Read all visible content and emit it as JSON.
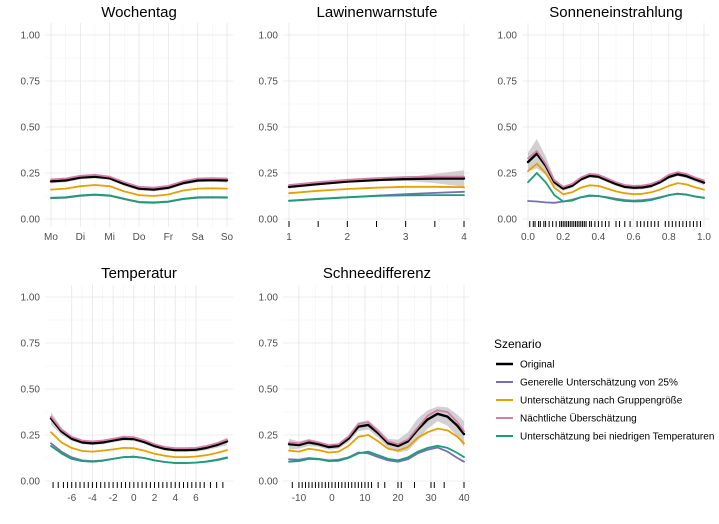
{
  "legend": {
    "title": "Szenario",
    "position": "right",
    "items": [
      {
        "key": "original",
        "label": "Original",
        "color": "#000000"
      },
      {
        "key": "generell",
        "label": "Generelle Unterschätzung von 25%",
        "color": "#7570b3"
      },
      {
        "key": "gruppe",
        "label": "Unterschätzung nach Gruppengröße",
        "color": "#e6a100"
      },
      {
        "key": "nacht",
        "label": "Nächtliche Überschätzung",
        "color": "#d67eaa"
      },
      {
        "key": "temp",
        "label": "Unterschätzung bei niedrigen Temperaturen",
        "color": "#1b9e77"
      }
    ]
  },
  "chart_data": [
    {
      "type": "line",
      "title": "Wochentag",
      "xlim": [
        1,
        7
      ],
      "ylim": [
        0,
        1
      ],
      "xticks": [
        {
          "v": 1,
          "label": "Mo"
        },
        {
          "v": 2,
          "label": "Di"
        },
        {
          "v": 3,
          "label": "Mi"
        },
        {
          "v": 4,
          "label": "Do"
        },
        {
          "v": 5,
          "label": "Fr"
        },
        {
          "v": 6,
          "label": "Sa"
        },
        {
          "v": 7,
          "label": "So"
        }
      ],
      "yticks": [
        {
          "v": 0,
          "label": "0.00"
        },
        {
          "v": 0.25,
          "label": "0.25"
        },
        {
          "v": 0.5,
          "label": "0.50"
        },
        {
          "v": 0.75,
          "label": "0.75"
        },
        {
          "v": 1,
          "label": "1.00"
        }
      ],
      "x": [
        1,
        1.5,
        2,
        2.5,
        3,
        3.5,
        4,
        4.5,
        5,
        5.5,
        6,
        6.5,
        7
      ],
      "series": [
        {
          "key": "nacht",
          "values": [
            0.215,
            0.22,
            0.235,
            0.24,
            0.23,
            0.2,
            0.175,
            0.17,
            0.18,
            0.205,
            0.22,
            0.222,
            0.22
          ]
        },
        {
          "key": "original",
          "values": [
            0.205,
            0.21,
            0.225,
            0.23,
            0.222,
            0.19,
            0.165,
            0.16,
            0.17,
            0.195,
            0.21,
            0.212,
            0.21
          ],
          "band": [
            0.012,
            0.01,
            0.01,
            0.01,
            0.01,
            0.01,
            0.01,
            0.01,
            0.01,
            0.01,
            0.01,
            0.01,
            0.012
          ]
        },
        {
          "key": "gruppe",
          "values": [
            0.16,
            0.165,
            0.178,
            0.185,
            0.178,
            0.15,
            0.13,
            0.125,
            0.133,
            0.155,
            0.165,
            0.167,
            0.165
          ]
        },
        {
          "key": "temp",
          "values": [
            0.115,
            0.118,
            0.128,
            0.133,
            0.128,
            0.11,
            0.093,
            0.09,
            0.095,
            0.11,
            0.118,
            0.119,
            0.118
          ]
        },
        {
          "key": "generell",
          "values": [
            0.113,
            0.116,
            0.126,
            0.131,
            0.126,
            0.108,
            0.091,
            0.088,
            0.093,
            0.108,
            0.116,
            0.117,
            0.116
          ]
        }
      ]
    },
    {
      "type": "line",
      "title": "Lawinenwarnstufe",
      "xlim": [
        1,
        4
      ],
      "ylim": [
        0,
        1
      ],
      "xticks": [
        {
          "v": 1,
          "label": "1"
        },
        {
          "v": 2,
          "label": "2"
        },
        {
          "v": 3,
          "label": "3"
        },
        {
          "v": 4,
          "label": "4"
        }
      ],
      "yticks": [
        {
          "v": 0,
          "label": "0.00"
        },
        {
          "v": 0.25,
          "label": "0.25"
        },
        {
          "v": 0.5,
          "label": "0.50"
        },
        {
          "v": 0.75,
          "label": "0.75"
        },
        {
          "v": 1,
          "label": "1.00"
        }
      ],
      "rug": [
        1,
        1.5,
        2,
        2.5,
        3,
        3.5,
        4
      ],
      "x": [
        1,
        1.5,
        2,
        2.5,
        3,
        3.5,
        4
      ],
      "series": [
        {
          "key": "nacht",
          "values": [
            0.185,
            0.2,
            0.213,
            0.222,
            0.228,
            0.23,
            0.23
          ]
        },
        {
          "key": "original",
          "values": [
            0.175,
            0.19,
            0.203,
            0.212,
            0.217,
            0.22,
            0.22
          ],
          "band": [
            0.01,
            0.007,
            0.006,
            0.006,
            0.01,
            0.025,
            0.045
          ]
        },
        {
          "key": "gruppe",
          "values": [
            0.14,
            0.153,
            0.163,
            0.17,
            0.175,
            0.175,
            0.173
          ]
        },
        {
          "key": "temp",
          "values": [
            0.1,
            0.11,
            0.118,
            0.125,
            0.128,
            0.13,
            0.13
          ]
        },
        {
          "key": "generell",
          "values": [
            0.098,
            0.108,
            0.118,
            0.127,
            0.135,
            0.142,
            0.148
          ]
        }
      ]
    },
    {
      "type": "line",
      "title": "Sonneneinstrahlung",
      "xlim": [
        0,
        1
      ],
      "ylim": [
        0,
        1
      ],
      "xticks": [
        {
          "v": 0,
          "label": "0.0"
        },
        {
          "v": 0.2,
          "label": "0.2"
        },
        {
          "v": 0.4,
          "label": "0.4"
        },
        {
          "v": 0.6,
          "label": "0.6"
        },
        {
          "v": 0.8,
          "label": "0.8"
        },
        {
          "v": 1,
          "label": "1.0"
        }
      ],
      "yticks": [
        {
          "v": 0,
          "label": "0.00"
        },
        {
          "v": 0.25,
          "label": "0.25"
        },
        {
          "v": 0.5,
          "label": "0.50"
        },
        {
          "v": 0.75,
          "label": "0.75"
        },
        {
          "v": 1,
          "label": "1.00"
        }
      ],
      "rug": [
        0.01,
        0.03,
        0.04,
        0.06,
        0.07,
        0.09,
        0.1,
        0.12,
        0.14,
        0.16,
        0.18,
        0.19,
        0.2,
        0.21,
        0.22,
        0.23,
        0.24,
        0.25,
        0.26,
        0.27,
        0.28,
        0.29,
        0.3,
        0.31,
        0.32,
        0.33,
        0.35,
        0.36,
        0.38,
        0.4,
        0.42,
        0.44,
        0.46,
        0.5,
        0.52,
        0.55,
        0.58,
        0.62,
        0.64,
        0.66,
        0.68,
        0.7,
        0.72,
        0.74,
        0.78,
        0.8,
        0.82,
        0.84,
        0.86,
        0.88,
        0.9,
        0.92,
        0.94,
        0.96,
        0.98
      ],
      "x": [
        0,
        0.05,
        0.1,
        0.15,
        0.2,
        0.25,
        0.3,
        0.35,
        0.4,
        0.45,
        0.5,
        0.55,
        0.6,
        0.65,
        0.7,
        0.75,
        0.8,
        0.85,
        0.9,
        0.95,
        1
      ],
      "series": [
        {
          "key": "nacht",
          "values": [
            0.33,
            0.37,
            0.3,
            0.21,
            0.175,
            0.19,
            0.225,
            0.245,
            0.24,
            0.22,
            0.2,
            0.185,
            0.18,
            0.182,
            0.19,
            0.21,
            0.24,
            0.255,
            0.245,
            0.225,
            0.21
          ]
        },
        {
          "key": "original",
          "values": [
            0.31,
            0.355,
            0.29,
            0.2,
            0.165,
            0.18,
            0.215,
            0.235,
            0.23,
            0.21,
            0.19,
            0.175,
            0.17,
            0.172,
            0.18,
            0.2,
            0.228,
            0.243,
            0.233,
            0.215,
            0.198
          ],
          "band": [
            0.05,
            0.08,
            0.05,
            0.02,
            0.012,
            0.01,
            0.01,
            0.01,
            0.01,
            0.01,
            0.01,
            0.01,
            0.01,
            0.01,
            0.01,
            0.01,
            0.01,
            0.01,
            0.012,
            0.012,
            0.015
          ]
        },
        {
          "key": "gruppe",
          "values": [
            0.26,
            0.3,
            0.25,
            0.17,
            0.135,
            0.145,
            0.17,
            0.183,
            0.18,
            0.165,
            0.15,
            0.14,
            0.135,
            0.137,
            0.145,
            0.16,
            0.18,
            0.195,
            0.188,
            0.172,
            0.16
          ]
        },
        {
          "key": "temp",
          "values": [
            0.2,
            0.25,
            0.2,
            0.13,
            0.095,
            0.1,
            0.118,
            0.128,
            0.125,
            0.115,
            0.105,
            0.098,
            0.095,
            0.097,
            0.103,
            0.115,
            0.13,
            0.138,
            0.133,
            0.122,
            0.115
          ]
        },
        {
          "key": "generell",
          "values": [
            0.098,
            0.095,
            0.09,
            0.088,
            0.095,
            0.105,
            0.118,
            0.125,
            0.125,
            0.118,
            0.11,
            0.103,
            0.1,
            0.102,
            0.108,
            0.118,
            0.13,
            0.137,
            0.132,
            0.123,
            0.115
          ]
        }
      ]
    },
    {
      "type": "line",
      "title": "Temperatur",
      "xlim": [
        -8,
        9
      ],
      "ylim": [
        0,
        1
      ],
      "xticks": [
        {
          "v": -6,
          "label": "-6"
        },
        {
          "v": -4,
          "label": "-4"
        },
        {
          "v": -2,
          "label": "-2"
        },
        {
          "v": 0,
          "label": "0"
        },
        {
          "v": 2,
          "label": "2"
        },
        {
          "v": 4,
          "label": "4"
        },
        {
          "v": 6,
          "label": "6"
        }
      ],
      "yticks": [
        {
          "v": 0,
          "label": "0.00"
        },
        {
          "v": 0.25,
          "label": "0.25"
        },
        {
          "v": 0.5,
          "label": "0.50"
        },
        {
          "v": 0.75,
          "label": "0.75"
        },
        {
          "v": 1,
          "label": "1.00"
        }
      ],
      "rug": [
        -7.8,
        -7.3,
        -6.8,
        -6.4,
        -6,
        -5.6,
        -5.2,
        -4.8,
        -4.4,
        -4,
        -3.6,
        -3.2,
        -2.8,
        -2.4,
        -2,
        -1.6,
        -1.2,
        -0.8,
        -0.4,
        0,
        0.4,
        0.8,
        1.2,
        1.6,
        2,
        2.4,
        2.8,
        3.2,
        3.6,
        4,
        4.4,
        4.8,
        5.2,
        5.6,
        6,
        6.4,
        6.8,
        7.4,
        8,
        8.6
      ],
      "x": [
        -8,
        -7,
        -6,
        -5,
        -4,
        -3,
        -2,
        -1,
        0,
        1,
        2,
        3,
        4,
        5,
        6,
        7,
        8,
        9
      ],
      "series": [
        {
          "key": "nacht",
          "values": [
            0.35,
            0.28,
            0.24,
            0.22,
            0.215,
            0.22,
            0.23,
            0.24,
            0.238,
            0.222,
            0.2,
            0.185,
            0.178,
            0.178,
            0.18,
            0.19,
            0.205,
            0.225
          ]
        },
        {
          "key": "original",
          "values": [
            0.34,
            0.27,
            0.23,
            0.21,
            0.205,
            0.21,
            0.22,
            0.23,
            0.228,
            0.212,
            0.19,
            0.175,
            0.168,
            0.168,
            0.17,
            0.18,
            0.195,
            0.215
          ],
          "band": [
            0.035,
            0.02,
            0.012,
            0.01,
            0.01,
            0.01,
            0.01,
            0.01,
            0.01,
            0.01,
            0.01,
            0.01,
            0.01,
            0.01,
            0.01,
            0.012,
            0.015,
            0.02
          ]
        },
        {
          "key": "gruppe",
          "values": [
            0.265,
            0.21,
            0.18,
            0.163,
            0.16,
            0.165,
            0.172,
            0.18,
            0.178,
            0.165,
            0.148,
            0.137,
            0.13,
            0.13,
            0.133,
            0.14,
            0.152,
            0.168
          ]
        },
        {
          "key": "temp",
          "values": [
            0.19,
            0.15,
            0.12,
            0.108,
            0.105,
            0.11,
            0.12,
            0.13,
            0.132,
            0.125,
            0.112,
            0.103,
            0.098,
            0.098,
            0.1,
            0.105,
            0.113,
            0.125
          ]
        },
        {
          "key": "generell",
          "values": [
            0.205,
            0.16,
            0.128,
            0.112,
            0.108,
            0.112,
            0.12,
            0.13,
            0.132,
            0.125,
            0.112,
            0.103,
            0.098,
            0.098,
            0.1,
            0.106,
            0.115,
            0.128
          ]
        }
      ]
    },
    {
      "type": "line",
      "title": "Schneedifferenz",
      "xlim": [
        -13,
        40
      ],
      "ylim": [
        0,
        1
      ],
      "xticks": [
        {
          "v": -10,
          "label": "-10"
        },
        {
          "v": 0,
          "label": "0"
        },
        {
          "v": 10,
          "label": "10"
        },
        {
          "v": 20,
          "label": "20"
        },
        {
          "v": 30,
          "label": "30"
        },
        {
          "v": 40,
          "label": "40"
        }
      ],
      "yticks": [
        {
          "v": 0,
          "label": "0.00"
        },
        {
          "v": 0.25,
          "label": "0.25"
        },
        {
          "v": 0.5,
          "label": "0.50"
        },
        {
          "v": 0.75,
          "label": "0.75"
        },
        {
          "v": 1,
          "label": "1.00"
        }
      ],
      "rug": [
        -12,
        -10,
        -9,
        -8,
        -7,
        -6,
        -5,
        -4,
        -3,
        -2,
        -1,
        0,
        1,
        2,
        3,
        4,
        5,
        6,
        7,
        8,
        9,
        10,
        11,
        12,
        14,
        16,
        20,
        21,
        25,
        30,
        31,
        34,
        40
      ],
      "x": [
        -13,
        -10,
        -7,
        -4,
        -1,
        2,
        5,
        8,
        11,
        14,
        17,
        20,
        23,
        26,
        29,
        32,
        35,
        38,
        40
      ],
      "series": [
        {
          "key": "nacht",
          "values": [
            0.21,
            0.205,
            0.22,
            0.21,
            0.195,
            0.2,
            0.24,
            0.31,
            0.32,
            0.27,
            0.215,
            0.2,
            0.225,
            0.29,
            0.355,
            0.385,
            0.375,
            0.32,
            0.27
          ]
        },
        {
          "key": "original",
          "values": [
            0.2,
            0.195,
            0.21,
            0.2,
            0.185,
            0.19,
            0.23,
            0.295,
            0.305,
            0.26,
            0.205,
            0.19,
            0.215,
            0.28,
            0.335,
            0.365,
            0.35,
            0.3,
            0.255
          ],
          "band": [
            0.03,
            0.02,
            0.02,
            0.015,
            0.015,
            0.015,
            0.02,
            0.025,
            0.025,
            0.025,
            0.025,
            0.035,
            0.05,
            0.06,
            0.05,
            0.04,
            0.05,
            0.06,
            0.07
          ]
        },
        {
          "key": "gruppe",
          "values": [
            0.165,
            0.16,
            0.175,
            0.168,
            0.155,
            0.16,
            0.19,
            0.24,
            0.25,
            0.215,
            0.175,
            0.165,
            0.185,
            0.235,
            0.265,
            0.285,
            0.275,
            0.24,
            0.205
          ]
        },
        {
          "key": "temp",
          "values": [
            0.105,
            0.108,
            0.12,
            0.118,
            0.108,
            0.11,
            0.125,
            0.15,
            0.16,
            0.14,
            0.12,
            0.112,
            0.128,
            0.16,
            0.18,
            0.192,
            0.18,
            0.152,
            0.13
          ]
        },
        {
          "key": "generell",
          "values": [
            0.118,
            0.115,
            0.125,
            0.12,
            0.112,
            0.115,
            0.128,
            0.155,
            0.15,
            0.13,
            0.112,
            0.105,
            0.118,
            0.15,
            0.17,
            0.182,
            0.16,
            0.125,
            0.105
          ]
        }
      ]
    }
  ]
}
